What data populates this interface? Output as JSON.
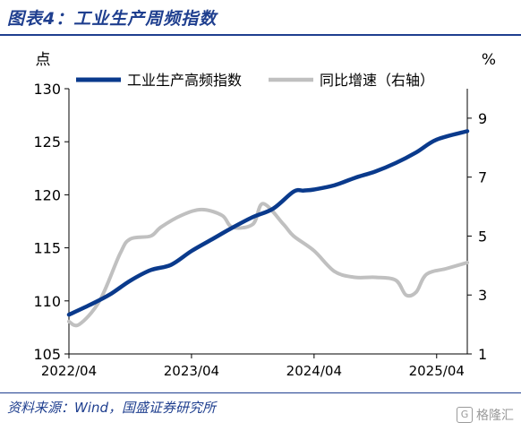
{
  "figure": {
    "title": "图表4：工业生产周频指数",
    "source": "资料来源：Wind，国盛证券研究所",
    "watermark": "格隆汇"
  },
  "chart_data": {
    "type": "line",
    "left_unit": "点",
    "right_unit": "%",
    "x_ticks": [
      "2022/04",
      "2023/04",
      "2024/04",
      "2025/04"
    ],
    "x_range": [
      "2022/04",
      "2025/07"
    ],
    "y_left": {
      "range": [
        105,
        130
      ],
      "ticks": [
        105,
        110,
        115,
        120,
        125,
        130
      ]
    },
    "y_right": {
      "range": [
        1,
        10
      ],
      "ticks": [
        1,
        3,
        5,
        7,
        9
      ]
    },
    "grid": false,
    "legend_position": "top",
    "series": [
      {
        "name": "工业生产高频指数",
        "axis": "left",
        "color": "#0a3a8c",
        "x": [
          "2022/04",
          "2022/06",
          "2022/08",
          "2022/10",
          "2022/12",
          "2023/02",
          "2023/04",
          "2023/06",
          "2023/08",
          "2023/10",
          "2023/12",
          "2024/02",
          "2024/03",
          "2024/04",
          "2024/06",
          "2024/08",
          "2024/10",
          "2024/12",
          "2025/02",
          "2025/04",
          "2025/07"
        ],
        "values": [
          108.7,
          109.6,
          110.6,
          111.9,
          112.9,
          113.4,
          114.7,
          115.8,
          116.9,
          117.9,
          118.7,
          120.3,
          120.4,
          120.5,
          120.9,
          121.6,
          122.2,
          123.0,
          124.0,
          125.2,
          126.0
        ]
      },
      {
        "name": "同比增速（右轴）",
        "axis": "right",
        "color": "#c0c0c0",
        "x": [
          "2022/04",
          "2022/05",
          "2022/07",
          "2022/09",
          "2022/10",
          "2022/12",
          "2023/01",
          "2023/03",
          "2023/05",
          "2023/07",
          "2023/08",
          "2023/10",
          "2023/11",
          "2024/01",
          "2024/02",
          "2024/04",
          "2024/06",
          "2024/08",
          "2024/10",
          "2024/12",
          "2025/01",
          "2025/02",
          "2025/03",
          "2025/05",
          "2025/07"
        ],
        "values": [
          2.1,
          2.0,
          2.8,
          4.4,
          4.9,
          5.0,
          5.3,
          5.7,
          5.9,
          5.7,
          5.3,
          5.4,
          6.1,
          5.4,
          5.0,
          4.5,
          3.8,
          3.6,
          3.6,
          3.5,
          3.0,
          3.1,
          3.7,
          3.9,
          4.1
        ]
      }
    ]
  }
}
